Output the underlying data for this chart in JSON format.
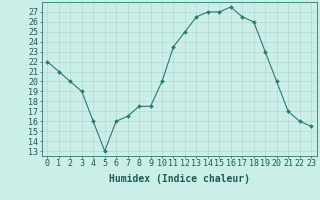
{
  "xlabel": "Humidex (Indice chaleur)",
  "x_values": [
    0,
    1,
    2,
    3,
    4,
    5,
    6,
    7,
    8,
    9,
    10,
    11,
    12,
    13,
    14,
    15,
    16,
    17,
    18,
    19,
    20,
    21,
    22,
    23
  ],
  "y_values": [
    22,
    21,
    20,
    19,
    16,
    13,
    16,
    16.5,
    17.5,
    17.5,
    20,
    23.5,
    25,
    26.5,
    27,
    27,
    27.5,
    26.5,
    26,
    23,
    20,
    17,
    16,
    15.5
  ],
  "ylim_min": 12.5,
  "ylim_max": 28.0,
  "xlim_min": -0.5,
  "xlim_max": 23.5,
  "yticks": [
    13,
    14,
    15,
    16,
    17,
    18,
    19,
    20,
    21,
    22,
    23,
    24,
    25,
    26,
    27
  ],
  "xticks": [
    0,
    1,
    2,
    3,
    4,
    5,
    6,
    7,
    8,
    9,
    10,
    11,
    12,
    13,
    14,
    15,
    16,
    17,
    18,
    19,
    20,
    21,
    22,
    23
  ],
  "line_color": "#2d7a6e",
  "marker_color": "#2d7a6e",
  "bg_color": "#cceee8",
  "grid_color": "#aad6d0",
  "axis_color": "#2d7a6e",
  "text_color": "#1a5c54",
  "tick_fontsize": 6,
  "xlabel_fontsize": 7
}
